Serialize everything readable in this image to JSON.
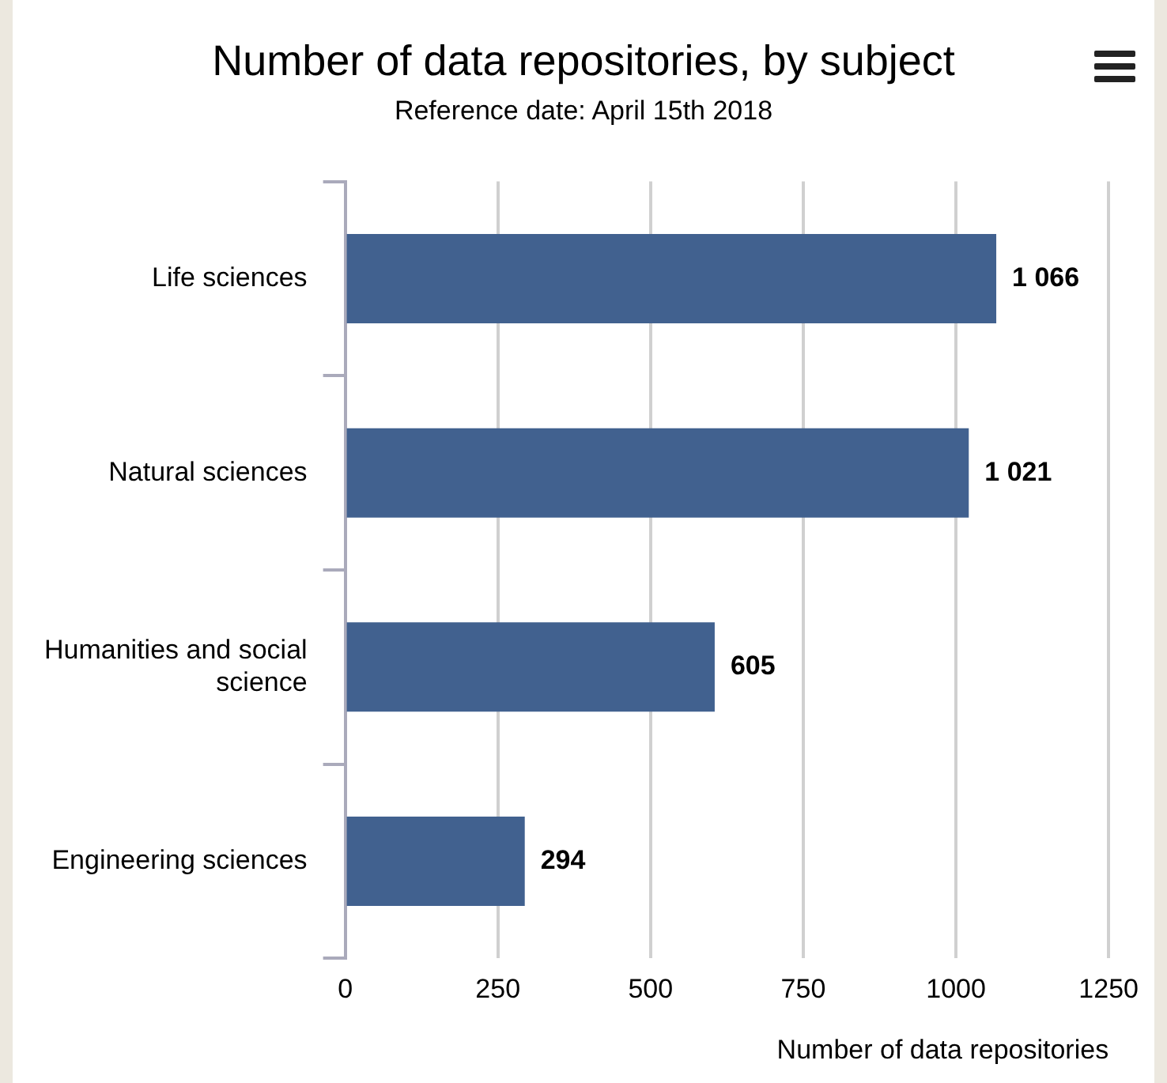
{
  "chart_data": {
    "type": "bar",
    "orientation": "horizontal",
    "title": "Number of data repositories, by subject",
    "subtitle": "Reference date: April 15th 2018",
    "xlabel": "Number of data repositories",
    "categories": [
      "Life sciences",
      "Natural sciences",
      "Humanities and social science",
      "Engineering sciences"
    ],
    "values": [
      1066,
      1021,
      605,
      294
    ],
    "value_labels": [
      "1 066",
      "1 021",
      "605",
      "294"
    ],
    "color": "#41618f",
    "xlim": [
      0,
      1250
    ],
    "xticks": [
      0,
      250,
      500,
      750,
      1000,
      1250
    ],
    "grid": "x",
    "legend": false
  }
}
